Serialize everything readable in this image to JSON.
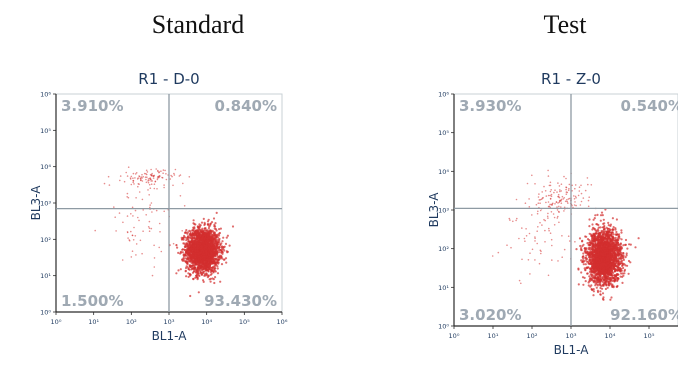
{
  "headings": {
    "left": "Standard",
    "right": "Test"
  },
  "chart_data": [
    {
      "type": "scatter",
      "title": "R1 - D-0",
      "xlabel": "BL1-A",
      "ylabel": "BL3-A",
      "xscale": "log",
      "yscale": "log",
      "xlim": [
        1,
        1000000
      ],
      "ylim": [
        1,
        1000000
      ],
      "x_ticks": [
        "10⁰",
        "10¹",
        "10²",
        "10³",
        "10⁴",
        "10⁵",
        "10⁶"
      ],
      "y_ticks": [
        "10⁰",
        "10¹",
        "10²",
        "10³",
        "10⁴",
        "10⁵",
        "10⁶"
      ],
      "gate": {
        "x": 1000,
        "y": 700
      },
      "quadrants": {
        "upper_left": "3.910%",
        "upper_right": "0.840%",
        "lower_left": "1.500%",
        "lower_right": "93.430%"
      },
      "point_color": "#d32f2f",
      "populations": [
        {
          "name": "main",
          "cx": 8000,
          "cy": 50,
          "spread_x": 0.22,
          "spread_y": 0.3,
          "share": 0.93
        },
        {
          "name": "upper",
          "cx": 300,
          "cy": 5000,
          "spread_x": 0.35,
          "spread_y": 0.12,
          "share": 0.04
        },
        {
          "name": "scatter",
          "cx": 200,
          "cy": 300,
          "spread_x": 0.5,
          "spread_y": 0.6,
          "share": 0.03
        }
      ]
    },
    {
      "type": "scatter",
      "title": "R1 - Z-0",
      "xlabel": "BL1-A",
      "ylabel": "BL3-A",
      "xscale": "log",
      "yscale": "log",
      "xlim": [
        1,
        1000000
      ],
      "ylim": [
        1,
        1000000
      ],
      "x_ticks": [
        "10⁰",
        "10¹",
        "10²",
        "10³",
        "10⁴",
        "10⁵",
        "10⁶"
      ],
      "y_ticks": [
        "10⁰",
        "10¹",
        "10²",
        "10³",
        "10⁴",
        "10⁵",
        "10⁶"
      ],
      "gate": {
        "x": 1000,
        "y": 1100
      },
      "quadrants": {
        "upper_left": "3.930%",
        "upper_right": "0.540%",
        "lower_left": "3.020%",
        "lower_right": "92.160%"
      },
      "point_color": "#d32f2f",
      "populations": [
        {
          "name": "main",
          "cx": 7000,
          "cy": 60,
          "spread_x": 0.22,
          "spread_y": 0.35,
          "share": 0.92
        },
        {
          "name": "upper",
          "cx": 600,
          "cy": 2000,
          "spread_x": 0.35,
          "spread_y": 0.25,
          "share": 0.05
        },
        {
          "name": "scatter",
          "cx": 150,
          "cy": 300,
          "spread_x": 0.55,
          "spread_y": 0.6,
          "share": 0.03
        }
      ]
    }
  ]
}
